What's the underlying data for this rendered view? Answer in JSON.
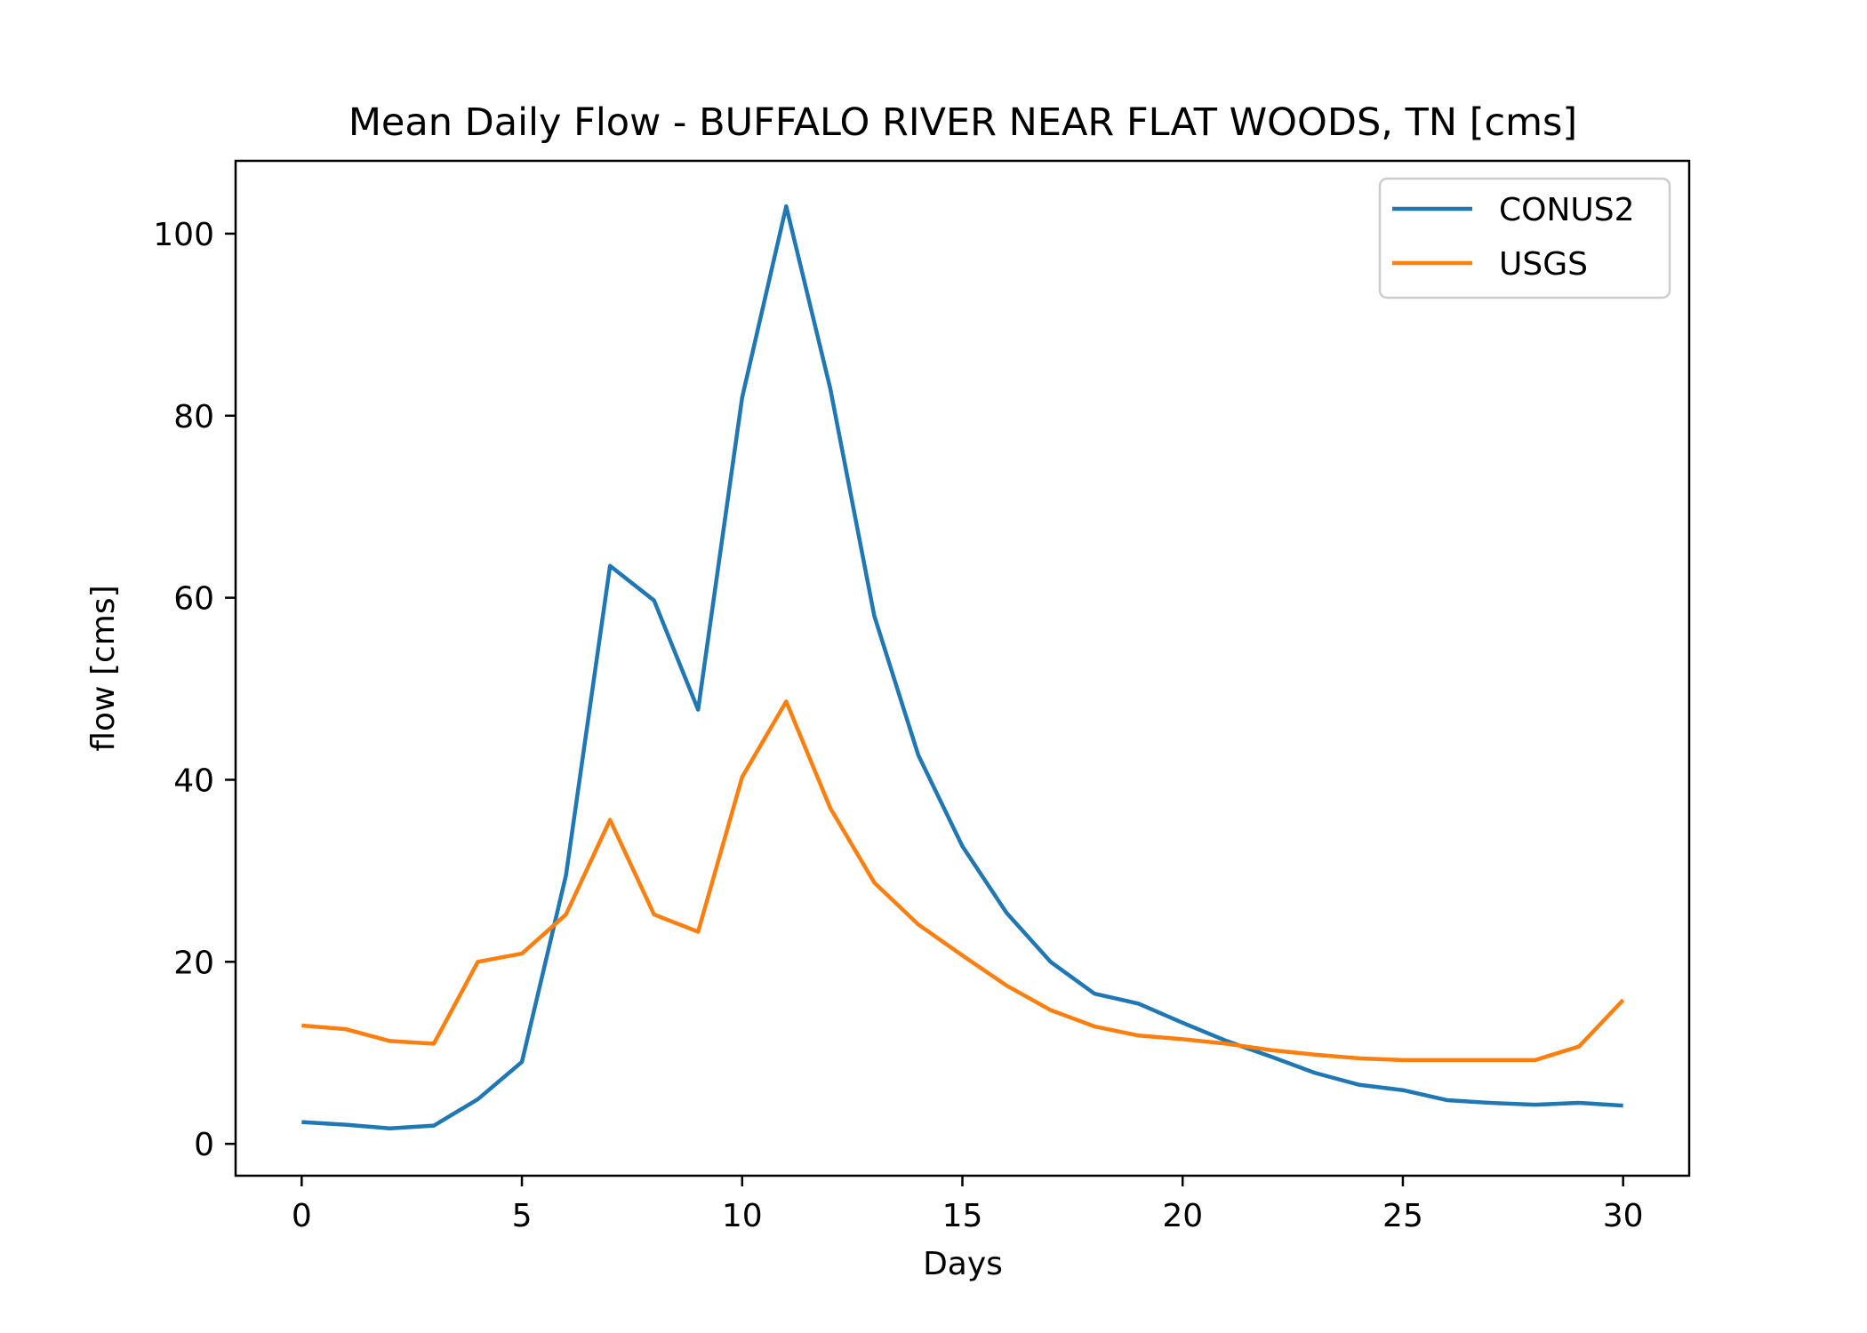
{
  "chart_data": {
    "type": "line",
    "title": "Mean Daily Flow - BUFFALO RIVER NEAR FLAT WOODS, TN [cms]",
    "xlabel": "Days",
    "ylabel": "flow [cms]",
    "xlim": [
      -1.5,
      31.5
    ],
    "ylim": [
      -3.5,
      108
    ],
    "xticks": [
      0,
      5,
      10,
      15,
      20,
      25,
      30
    ],
    "yticks": [
      0,
      20,
      40,
      60,
      80,
      100
    ],
    "grid": false,
    "legend_position": "upper right",
    "x": [
      0,
      1,
      2,
      3,
      4,
      5,
      6,
      7,
      8,
      9,
      10,
      11,
      12,
      13,
      14,
      15,
      16,
      17,
      18,
      19,
      20,
      21,
      22,
      23,
      24,
      25,
      26,
      27,
      28,
      29,
      30
    ],
    "series": [
      {
        "name": "CONUS2",
        "color": "#1f77b4",
        "values": [
          2.4,
          2.1,
          1.7,
          2.0,
          4.9,
          9.0,
          29.5,
          63.5,
          59.7,
          47.7,
          82.0,
          103.0,
          83.0,
          58.0,
          42.7,
          32.7,
          25.4,
          20.0,
          16.5,
          15.4,
          13.3,
          11.3,
          9.6,
          7.8,
          6.5,
          5.9,
          4.8,
          4.5,
          4.3,
          4.5,
          4.2
        ]
      },
      {
        "name": "USGS",
        "color": "#ff7f0e",
        "values": [
          13.0,
          12.6,
          11.3,
          11.0,
          20.0,
          20.9,
          25.2,
          35.6,
          25.2,
          23.3,
          40.3,
          48.6,
          36.9,
          28.7,
          24.1,
          20.7,
          17.4,
          14.7,
          12.9,
          11.9,
          11.5,
          11.0,
          10.3,
          9.8,
          9.4,
          9.2,
          9.2,
          9.2,
          9.2,
          10.7,
          15.8
        ]
      }
    ]
  }
}
